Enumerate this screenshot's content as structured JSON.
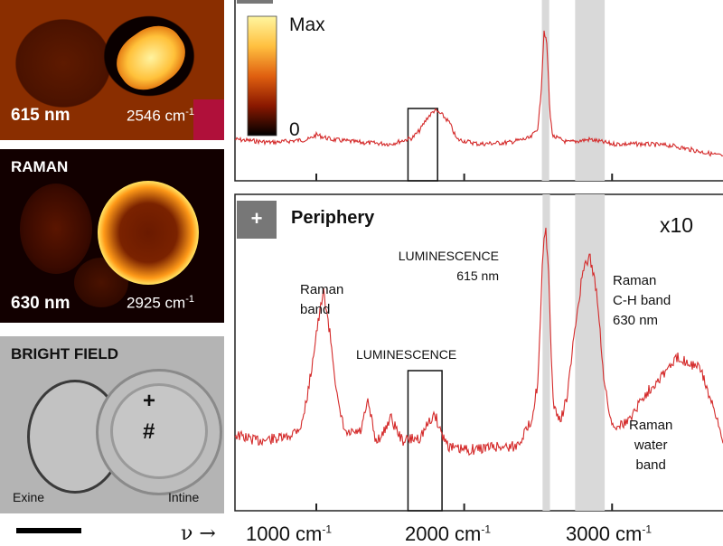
{
  "images": {
    "lum615": {
      "wavelength": "615 nm",
      "wavenumber": "2546 cm",
      "exp": "-1"
    },
    "raman": {
      "title": "RAMAN",
      "wavelength": "630 nm",
      "wavenumber": "2925 cm",
      "exp": "-1"
    },
    "brightfield": {
      "title": "BRIGHT FIELD",
      "left_label": "Exine",
      "right_label": "Intine",
      "marker_plus": "+",
      "marker_hash": "#"
    }
  },
  "colorbar": {
    "max_label": "Max",
    "min_label": "0"
  },
  "top_panel": {},
  "bottom_panel": {
    "button": "+",
    "title": "Periphery",
    "scale": "x10",
    "annotations": {
      "raman_band_1": "Raman",
      "raman_band_2": "band",
      "lum_peak_1": "LUMINESCENCE",
      "lum_peak_2": "615 nm",
      "ch_1": "Raman",
      "ch_2": "C-H band",
      "ch_3": "630 nm",
      "lum_box": "LUMINESCENCE",
      "water_1": "Raman",
      "water_2": "water",
      "water_3": "band"
    }
  },
  "x_axis": {
    "nu": "ν →",
    "ticks": [
      {
        "label": "1000 cm",
        "exp": "-1"
      },
      {
        "label": "2000 cm",
        "exp": "-1"
      },
      {
        "label": "3000 cm",
        "exp": "-1"
      }
    ]
  },
  "colors": {
    "trace": "#d42a2a",
    "band": "#d9d9d9",
    "button": "#777777"
  },
  "chart_data": [
    {
      "type": "line",
      "xlabel": "",
      "ylabel": "",
      "xlim": [
        450,
        3750
      ],
      "x_ticks": [
        1000,
        2000,
        3000
      ],
      "shaded_bands": [
        [
          2525,
          2575
        ],
        [
          2750,
          2950
        ]
      ],
      "boxes": [
        [
          1620,
          1820
        ]
      ],
      "x": [
        450,
        700,
        950,
        1000,
        1100,
        1300,
        1500,
        1650,
        1700,
        1750,
        1800,
        1850,
        1900,
        1950,
        2100,
        2300,
        2450,
        2500,
        2520,
        2540,
        2560,
        2580,
        2600,
        2700,
        2850,
        3000,
        3200,
        3400,
        3600,
        3750
      ],
      "y": [
        0.24,
        0.22,
        0.24,
        0.27,
        0.24,
        0.22,
        0.21,
        0.25,
        0.3,
        0.38,
        0.43,
        0.4,
        0.35,
        0.24,
        0.21,
        0.22,
        0.25,
        0.32,
        0.55,
        0.95,
        0.85,
        0.4,
        0.26,
        0.22,
        0.24,
        0.21,
        0.21,
        0.2,
        0.16,
        0.13
      ]
    },
    {
      "type": "line",
      "title": "Periphery",
      "xlabel": "",
      "ylabel": "",
      "xlim": [
        450,
        3750
      ],
      "x_ticks": [
        1000,
        2000,
        3000
      ],
      "shaded_bands": [
        [
          2530,
          2580
        ],
        [
          2750,
          2950
        ]
      ],
      "boxes": [
        [
          1620,
          1850
        ]
      ],
      "x": [
        450,
        600,
        800,
        900,
        950,
        1000,
        1050,
        1100,
        1150,
        1200,
        1300,
        1350,
        1400,
        1450,
        1500,
        1580,
        1700,
        1800,
        1850,
        1900,
        1950,
        2050,
        2200,
        2350,
        2450,
        2500,
        2530,
        2550,
        2570,
        2600,
        2650,
        2700,
        2750,
        2800,
        2850,
        2900,
        2950,
        3000,
        3100,
        3200,
        3300,
        3450,
        3600,
        3700,
        3750
      ],
      "y": [
        0.24,
        0.22,
        0.23,
        0.27,
        0.4,
        0.58,
        0.72,
        0.55,
        0.33,
        0.24,
        0.25,
        0.35,
        0.22,
        0.24,
        0.3,
        0.22,
        0.23,
        0.31,
        0.24,
        0.2,
        0.19,
        0.19,
        0.2,
        0.2,
        0.28,
        0.42,
        0.82,
        0.95,
        0.78,
        0.35,
        0.28,
        0.38,
        0.6,
        0.78,
        0.84,
        0.7,
        0.4,
        0.27,
        0.28,
        0.36,
        0.42,
        0.5,
        0.46,
        0.3,
        0.22
      ]
    }
  ]
}
